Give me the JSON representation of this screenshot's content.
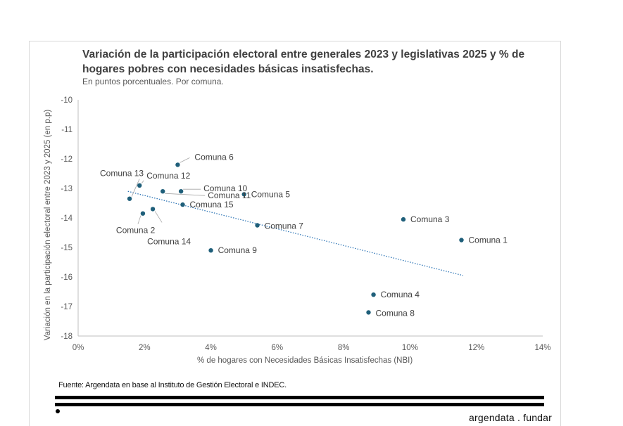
{
  "chart_data": {
    "type": "scatter",
    "title": "Variación de la participación electoral entre generales 2023 y legislativas 2025 y % de hogares pobres con necesidades básicas insatisfechas.",
    "subtitle": "En puntos porcentuales. Por comuna.",
    "xlabel": "% de hogares con Necesidades Básicas Insatisfechas (NBI)",
    "ylabel": "Variación en la participación electoral entre 2023 y 2025 (en p.p)",
    "xlim": [
      0,
      14
    ],
    "ylim": [
      -18,
      -10
    ],
    "x_ticks": [
      0,
      2,
      4,
      6,
      8,
      10,
      12,
      14
    ],
    "x_tick_labels": [
      "0%",
      "2%",
      "4%",
      "6%",
      "8%",
      "10%",
      "12%",
      "14%"
    ],
    "y_ticks": [
      -10,
      -11,
      -12,
      -13,
      -14,
      -15,
      -16,
      -17,
      -18
    ],
    "y_tick_labels": [
      "-10",
      "-11",
      "-12",
      "-13",
      "-14",
      "-15",
      "-16",
      "-17",
      "-18"
    ],
    "grid": false,
    "point_color": "#1f5f7a",
    "trend_color": "#2e75b6",
    "trendline": {
      "x": [
        1.5,
        11.6
      ],
      "y": [
        -13.1,
        -15.95
      ]
    },
    "points": [
      {
        "label": "Comuna 1",
        "x": 11.55,
        "y": -14.75
      },
      {
        "label": "Comuna 2",
        "x": 1.95,
        "y": -13.85
      },
      {
        "label": "Comuna 3",
        "x": 9.8,
        "y": -14.05
      },
      {
        "label": "Comuna 4",
        "x": 8.9,
        "y": -16.6
      },
      {
        "label": "Comuna 5",
        "x": 5.0,
        "y": -13.2
      },
      {
        "label": "Comuna 6",
        "x": 3.0,
        "y": -12.2
      },
      {
        "label": "Comuna 7",
        "x": 5.4,
        "y": -14.25
      },
      {
        "label": "Comuna 8",
        "x": 8.75,
        "y": -17.2
      },
      {
        "label": "Comuna 9",
        "x": 4.0,
        "y": -15.1
      },
      {
        "label": "Comuna 10",
        "x": 3.1,
        "y": -13.1
      },
      {
        "label": "Comuna 11",
        "x": 2.55,
        "y": -13.1
      },
      {
        "label": "Comuna 12",
        "x": 1.85,
        "y": -12.9
      },
      {
        "label": "Comuna 13",
        "x": 1.55,
        "y": -13.35
      },
      {
        "label": "Comuna 14",
        "x": 2.25,
        "y": -13.7
      },
      {
        "label": "Comuna 15",
        "x": 3.15,
        "y": -13.55
      }
    ]
  },
  "footer": {
    "source": "Fuente: Argendata en base al Instituto de Gestión Electoral e INDEC.",
    "brand": "argendata . fundar"
  }
}
